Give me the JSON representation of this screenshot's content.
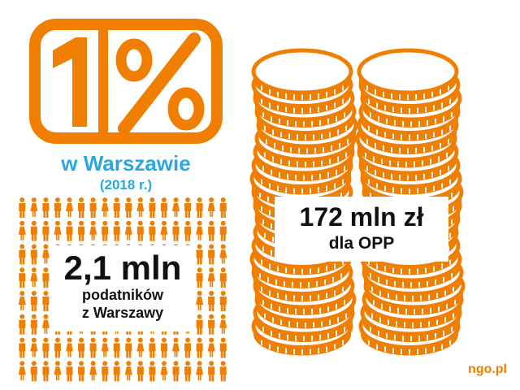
{
  "colors": {
    "accent": "#f07e00",
    "title_blue": "#29a8e0",
    "text": "#111111"
  },
  "logo": {
    "text": "1%"
  },
  "title": "w Warszawie",
  "year": "(2018 r.)",
  "taxpayers": {
    "number": "2,1 mln",
    "label_line1": "podatników",
    "label_line2": "z Warszawy"
  },
  "opp": {
    "amount": "172 mln zł",
    "label": "dla OPP"
  },
  "brand": "ngo.pl",
  "icons": {
    "people": "person-icon",
    "coins": "coin-icon"
  }
}
